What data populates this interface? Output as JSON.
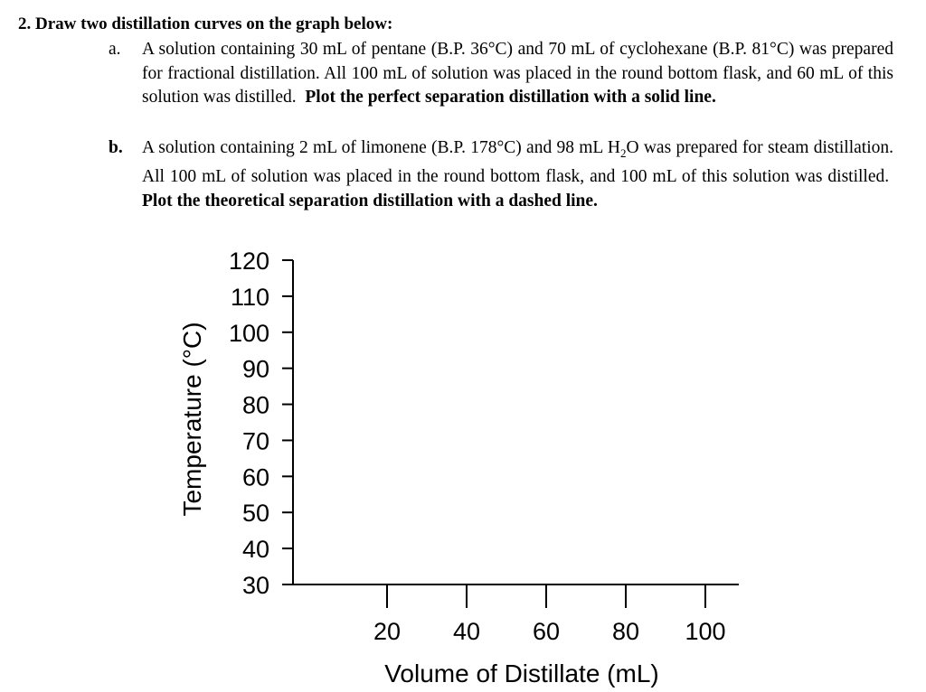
{
  "question": {
    "heading": "2. Draw two distillation curves on the graph below:",
    "items": [
      {
        "marker": "a.",
        "text": "A solution containing 30 mL of pentane (B.P. 36°C) and 70 mL of cyclohexane (B.P. 81°C) was prepared for fractional distillation.  All 100 mL of solution was placed in the round bottom flask, and 60 mL of this solution was distilled.",
        "instruction": "Plot the perfect separation distillation with a solid line."
      },
      {
        "marker": "b.",
        "text_before_sub": "A solution containing 2 mL of limonene (B.P. 178°C) and 98 mL H",
        "subscript": "2",
        "text_after_sub": "O was prepared for steam distillation.  All 100 mL of solution was placed in the round bottom flask, and 100 mL of this solution was distilled.",
        "instruction": "Plot the theoretical separation distillation with a dashed line."
      }
    ]
  },
  "chart_data": {
    "type": "line",
    "title": "",
    "xlabel": "Volume of Distillate (mL)",
    "ylabel": "Temperature (°C)",
    "x_ticks": [
      20,
      40,
      60,
      80,
      100
    ],
    "y_ticks": [
      120,
      110,
      100,
      90,
      80,
      70,
      60,
      50,
      40,
      30
    ],
    "xlim": [
      0,
      100
    ],
    "ylim": [
      30,
      120
    ],
    "grid": false,
    "series": []
  }
}
